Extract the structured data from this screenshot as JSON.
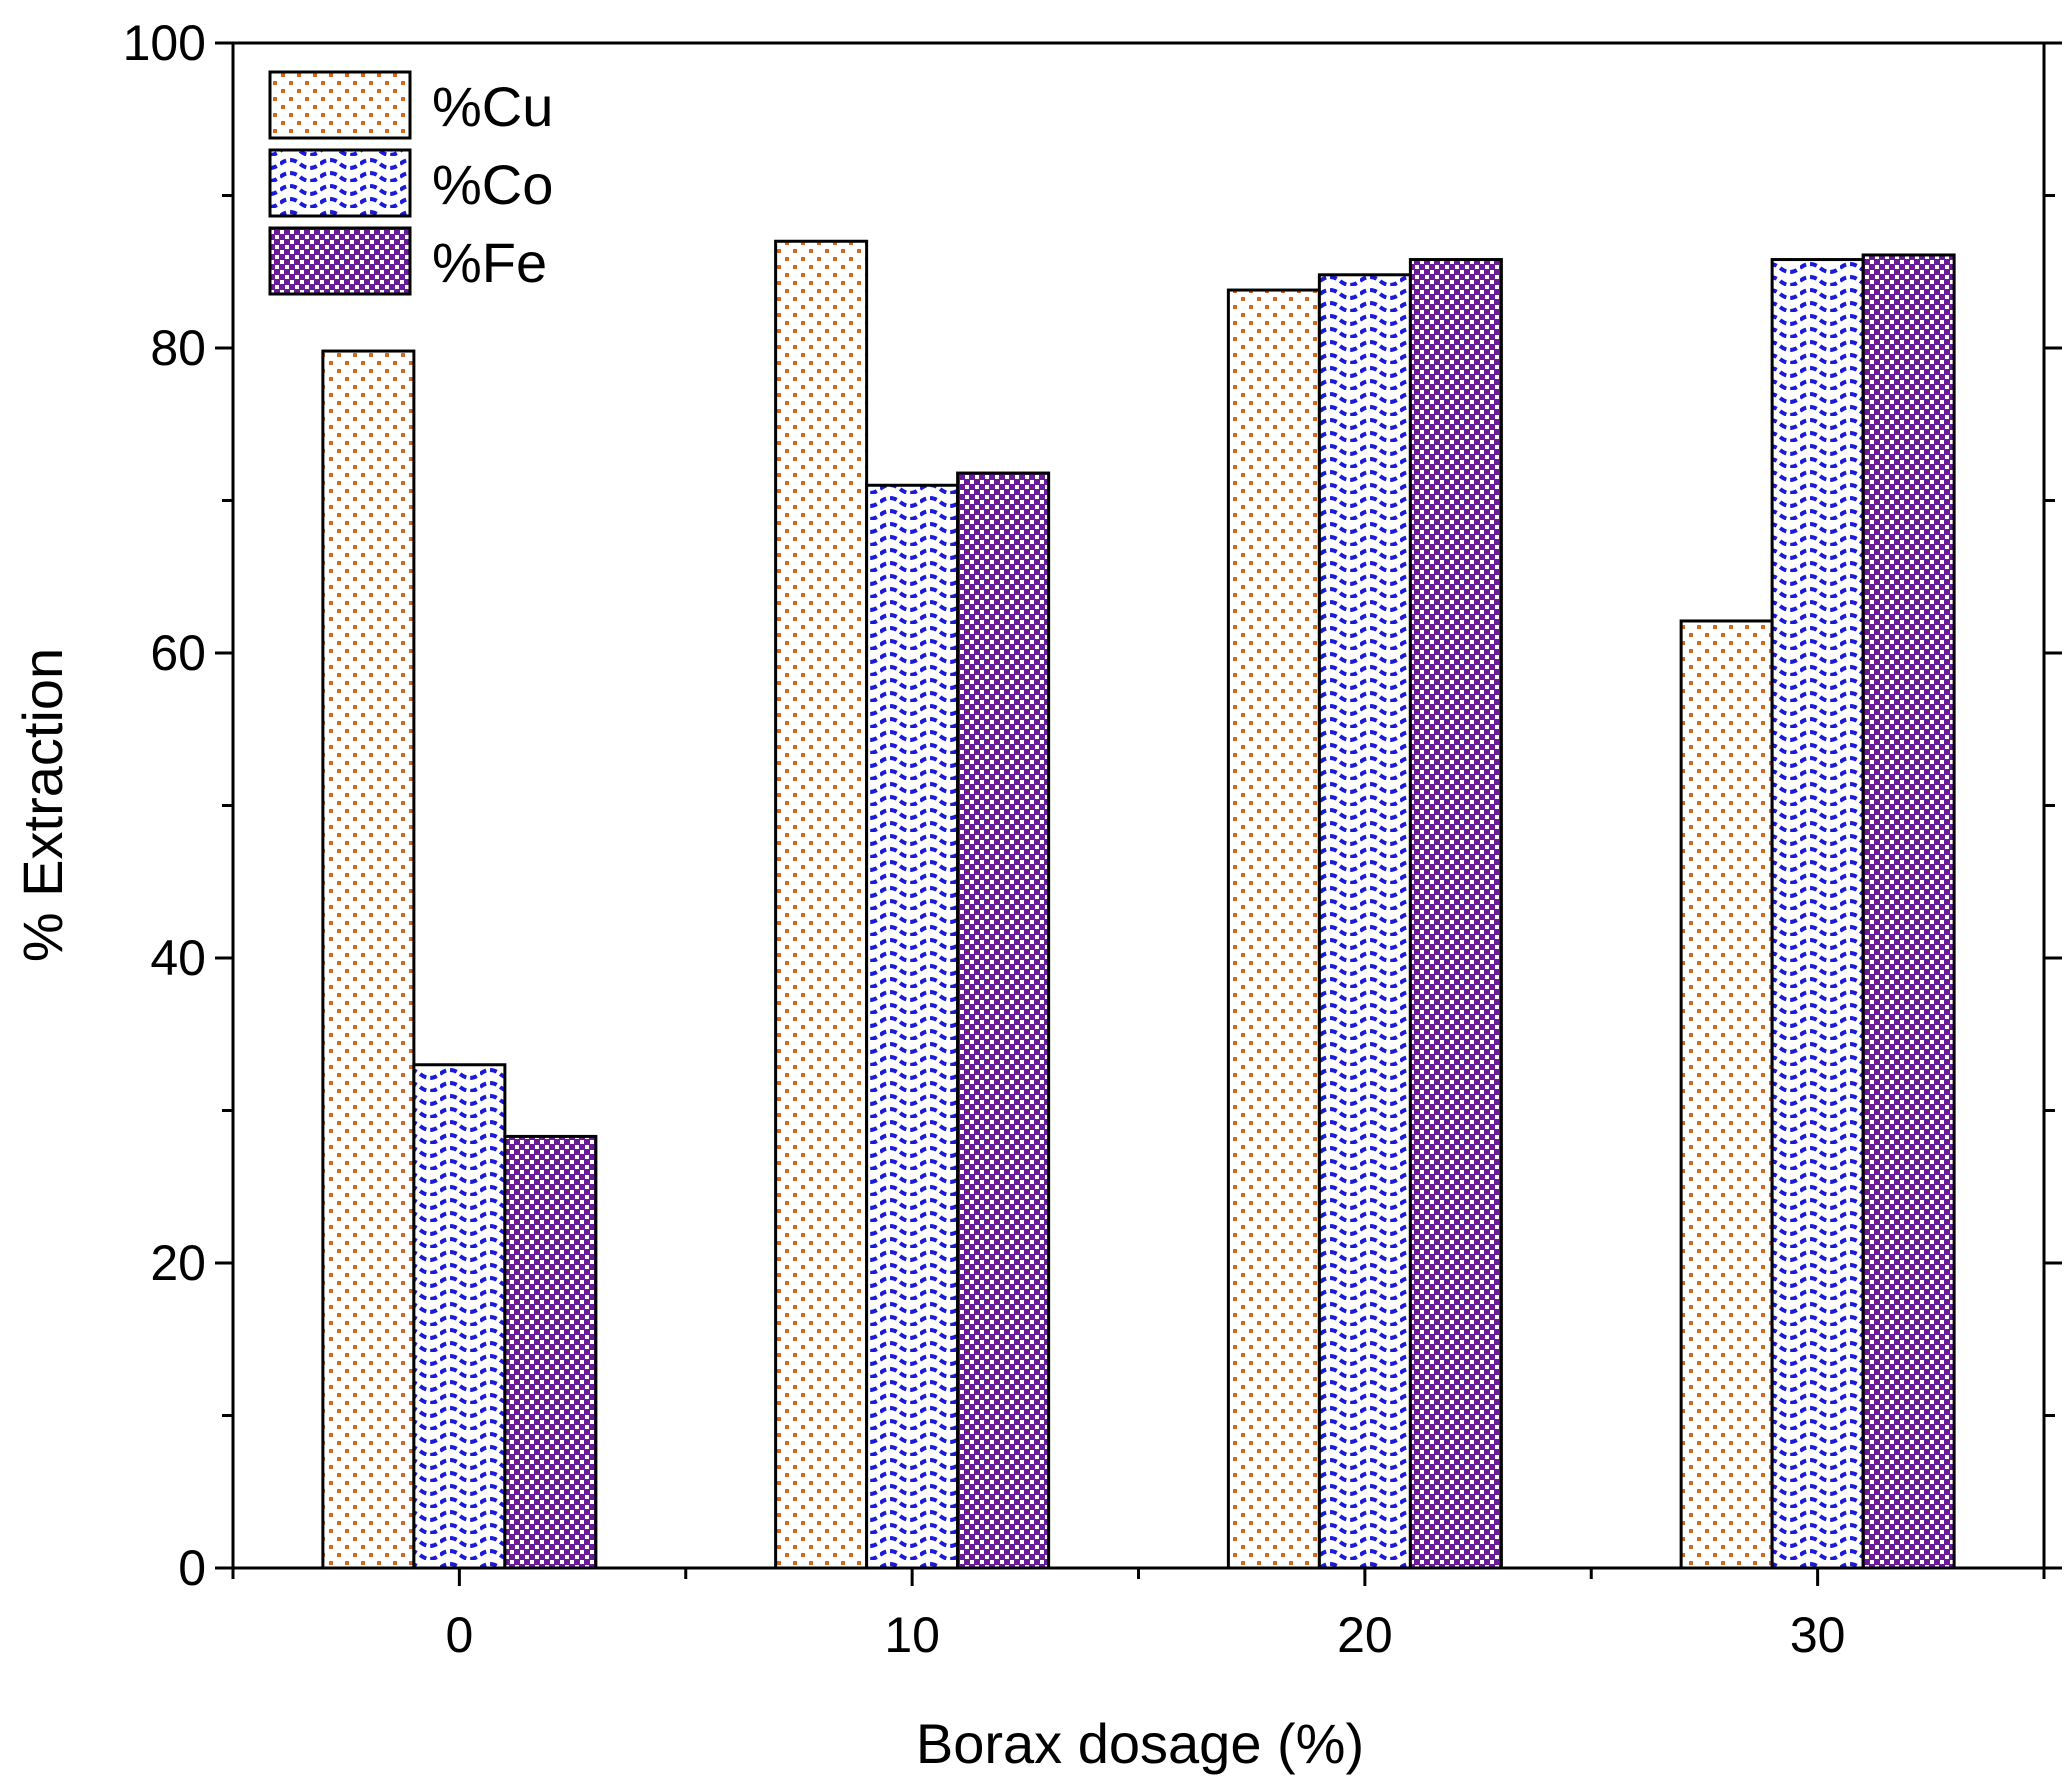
{
  "chart_data": {
    "type": "bar",
    "title": "",
    "xlabel": "Borax dosage (%)",
    "ylabel": "% Extraction",
    "categories": [
      "0",
      "10",
      "20",
      "30"
    ],
    "ylim": [
      0,
      100
    ],
    "yticks": [
      "0",
      "20",
      "40",
      "60",
      "80",
      "100"
    ],
    "grid": false,
    "legend_position": "top-left",
    "series": [
      {
        "name": "%Cu",
        "values": [
          79.8,
          87.0,
          83.8,
          62.1
        ],
        "pattern": "dots",
        "color": "#d2691e"
      },
      {
        "name": "%Co",
        "values": [
          33.0,
          71.0,
          84.8,
          85.8
        ],
        "pattern": "waves",
        "color": "#1a1adb"
      },
      {
        "name": "%Fe",
        "values": [
          28.3,
          71.8,
          85.8,
          86.1
        ],
        "pattern": "checker",
        "color": "#6a1b9a"
      }
    ]
  }
}
